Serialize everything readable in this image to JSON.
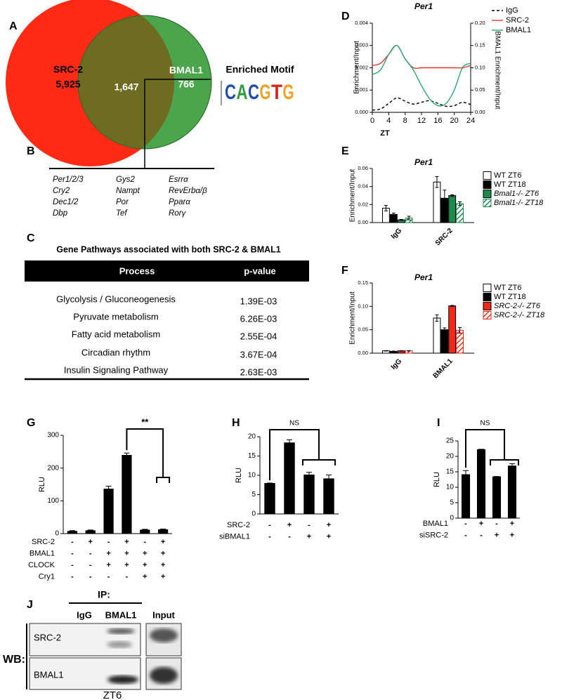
{
  "panel_labels": [
    "A",
    "B",
    "C",
    "D",
    "E",
    "F",
    "G",
    "H",
    "I",
    "J"
  ],
  "venn": {
    "left_name": "SRC-2",
    "left_count": "5,925",
    "overlap_count": "1,647",
    "right_name": "BMAL1",
    "right_count": "766",
    "left_color": "#ff2b14",
    "right_color": "#4aa54c",
    "overlap_color": "#6d6c20"
  },
  "motif": {
    "title": "Enriched Motif",
    "letters": [
      "C",
      "A",
      "C",
      "G",
      "T",
      "G"
    ],
    "colors": [
      "#1f4fa8",
      "#2e9a3e",
      "#1f4fa8",
      "#f0a020",
      "#d22a20",
      "#f0a020"
    ]
  },
  "gene_table": {
    "columns": [
      [
        "Per1/2/3",
        "Cry2",
        "Dec1/2",
        "Dbp"
      ],
      [
        "Gys2",
        "Nampt",
        "Por",
        "Tef"
      ],
      [
        "Esrrα",
        "RevErbα/β",
        "Pparα",
        "Rorγ"
      ]
    ]
  },
  "pathways": {
    "title": "Gene Pathways associated with both SRC-2 & BMAL1",
    "header": [
      "Process",
      "p-value"
    ],
    "rows": [
      [
        "Glycolysis / Gluconeogenesis",
        "1.39E-03"
      ],
      [
        "Pyruvate metabolism",
        "6.26E-03"
      ],
      [
        "Fatty acid metabolism",
        "2.55E-04"
      ],
      [
        "Circadian rhythm",
        "3.67E-04"
      ],
      [
        "Insulin Signaling Pathway",
        "2.63E-03"
      ]
    ]
  },
  "blot": {
    "ip_label": "IP:",
    "lanes": [
      "IgG",
      "BMAL1",
      "Input"
    ],
    "wb_label": "WB:",
    "rows": [
      "SRC-2",
      "BMAL1"
    ],
    "timepoint": "ZT6"
  },
  "chart_data": [
    {
      "type": "line",
      "title": "Per1",
      "xlabel": "ZT",
      "ylabel": "Enrichment/Input",
      "y2label": "BMAL1 Enrichment/Input",
      "x": [
        0,
        2,
        4,
        6,
        8,
        10,
        12,
        14,
        16,
        18,
        20,
        22,
        24
      ],
      "xlim": [
        0,
        24
      ],
      "xticks": [
        0,
        4,
        8,
        12,
        16,
        20,
        24
      ],
      "ylim": [
        0,
        0.004
      ],
      "yticks": [
        {
          "value": 0,
          "label": "0.000"
        },
        {
          "value": 0.001,
          "label": "0.001"
        },
        {
          "value": 0.002,
          "label": "0.002"
        },
        {
          "value": 0.003,
          "label": "0.003"
        },
        {
          "value": 0.004,
          "label": "0.004"
        }
      ],
      "y2lim": [
        0,
        0.2
      ],
      "y2ticks": [
        {
          "value": 0,
          "label": "0.00"
        },
        {
          "value": 0.05,
          "label": "0.05"
        },
        {
          "value": 0.1,
          "label": "0.10"
        },
        {
          "value": 0.15,
          "label": "0.15"
        },
        {
          "value": 0.2,
          "label": "0.20"
        }
      ],
      "series": [
        {
          "name": "IgG",
          "color": "#000000",
          "dashed": true,
          "values": [
            0.0001,
            0.00015,
            0.0004,
            0.00065,
            0.0005,
            0.00037,
            0.00045,
            0.00052,
            0.0004,
            0.00027,
            0.0003,
            0.00045,
            0.00035
          ]
        },
        {
          "name": "SRC-2",
          "color": "#e8392a",
          "values": [
            0.0021,
            0.0022,
            0.0026,
            0.003,
            0.0024,
            0.002,
            0.002,
            0.002,
            0.002,
            0.002,
            0.002,
            0.002,
            0.0021
          ]
        },
        {
          "name": "BMAL1",
          "color": "#2aa57a",
          "axis": "y2",
          "values": [
            0.085,
            0.095,
            0.13,
            0.15,
            0.12,
            0.095,
            0.06,
            0.03,
            0.015,
            0.02,
            0.05,
            0.1,
            0.11
          ]
        }
      ]
    },
    {
      "type": "bar",
      "title": "Per1",
      "ylabel": "Enrichment/Input",
      "categories": [
        "IgG",
        "SRC-2"
      ],
      "ylim": [
        0,
        0.06
      ],
      "yticks": [
        {
          "value": 0,
          "label": "0.00"
        },
        {
          "value": 0.02,
          "label": "0.02"
        },
        {
          "value": 0.04,
          "label": "0.04"
        },
        {
          "value": 0.06,
          "label": "0.06"
        }
      ],
      "series": [
        {
          "name": "WT ZT6",
          "color": "#ffffff",
          "values": [
            0.016,
            0.045
          ],
          "errors": [
            0.003,
            0.006
          ]
        },
        {
          "name": "WT ZT18",
          "color": "#000000",
          "values": [
            0.009,
            0.027
          ],
          "errors": [
            0.0015,
            0.009
          ]
        },
        {
          "name": "Bmal1-/- ZT6",
          "color": "#1e8a4c",
          "values": [
            0.003,
            0.03
          ],
          "errors": [
            0.0005,
            0.001
          ]
        },
        {
          "name": "Bmal1-/- ZT18",
          "color": "#1e8a4c",
          "hatch": true,
          "values": [
            0.005,
            0.021
          ],
          "errors": [
            0.002,
            0.002
          ]
        }
      ]
    },
    {
      "type": "bar",
      "title": "Per1",
      "ylabel": "Enrichment/Input",
      "categories": [
        "IgG",
        "BMAL1"
      ],
      "ylim": [
        0,
        0.15
      ],
      "yticks": [
        {
          "value": 0,
          "label": "0.00"
        },
        {
          "value": 0.05,
          "label": "0.05"
        },
        {
          "value": 0.1,
          "label": "0.10"
        },
        {
          "value": 0.15,
          "label": "0.15"
        }
      ],
      "series": [
        {
          "name": "WT ZT6",
          "color": "#ffffff",
          "values": [
            0.005,
            0.075
          ],
          "errors": [
            0.0005,
            0.007
          ]
        },
        {
          "name": "WT ZT18",
          "color": "#000000",
          "values": [
            0.004,
            0.05
          ],
          "errors": [
            0.0005,
            0.004
          ]
        },
        {
          "name": "SRC-2-/- ZT6",
          "color": "#ee2a1a",
          "values": [
            0.005,
            0.101
          ],
          "errors": [
            0.0005,
            0.001
          ]
        },
        {
          "name": "SRC-2-/- ZT18",
          "color": "#ee2a1a",
          "hatch": true,
          "values": [
            0.005,
            0.049
          ],
          "errors": [
            0.0005,
            0.006
          ]
        }
      ]
    },
    {
      "type": "bar",
      "ylabel": "RLU",
      "color": "#000000",
      "values": [
        8,
        10,
        137,
        240,
        12,
        13
      ],
      "errors": [
        1,
        1,
        8,
        6,
        1,
        1
      ],
      "ylim": [
        0,
        300
      ],
      "yticks": [
        0,
        100,
        200,
        300
      ],
      "annotation": "**",
      "conditions": [
        {
          "label": "SRC-2",
          "signs": [
            "-",
            "+",
            "-",
            "+",
            "-",
            "+"
          ]
        },
        {
          "label": "BMAL1",
          "signs": [
            "-",
            "-",
            "+",
            "+",
            "+",
            "+"
          ]
        },
        {
          "label": "CLOCK",
          "signs": [
            "-",
            "-",
            "+",
            "+",
            "+",
            "+"
          ]
        },
        {
          "label": "Cry1",
          "signs": [
            "-",
            "-",
            "-",
            "-",
            "+",
            "+"
          ]
        }
      ]
    },
    {
      "type": "bar",
      "ylabel": "RLU",
      "color": "#000000",
      "values": [
        8,
        18.5,
        10.2,
        9.2
      ],
      "errors": [
        0,
        0.7,
        0.6,
        0.9
      ],
      "ylim": [
        0,
        20
      ],
      "yticks": [
        0,
        5,
        10,
        15,
        20
      ],
      "annotation": "NS",
      "conditions": [
        {
          "label": "SRC-2",
          "signs": [
            "-",
            "+",
            "-",
            "+"
          ]
        },
        {
          "label": "siBMAL1",
          "signs": [
            "-",
            "-",
            "+",
            "+"
          ]
        }
      ]
    },
    {
      "type": "bar",
      "ylabel": "RLU",
      "color": "#000000",
      "values": [
        14.2,
        22.3,
        13.5,
        17
      ],
      "errors": [
        1.2,
        0,
        0,
        0.6
      ],
      "ylim": [
        0,
        25
      ],
      "yticks": [
        0,
        5,
        10,
        15,
        20,
        25
      ],
      "annotation": "NS",
      "conditions": [
        {
          "label": "BMAL1",
          "signs": [
            "-",
            "+",
            "-",
            "+"
          ]
        },
        {
          "label": "siSRC-2",
          "signs": [
            "-",
            "-",
            "+",
            "+"
          ]
        }
      ]
    }
  ]
}
